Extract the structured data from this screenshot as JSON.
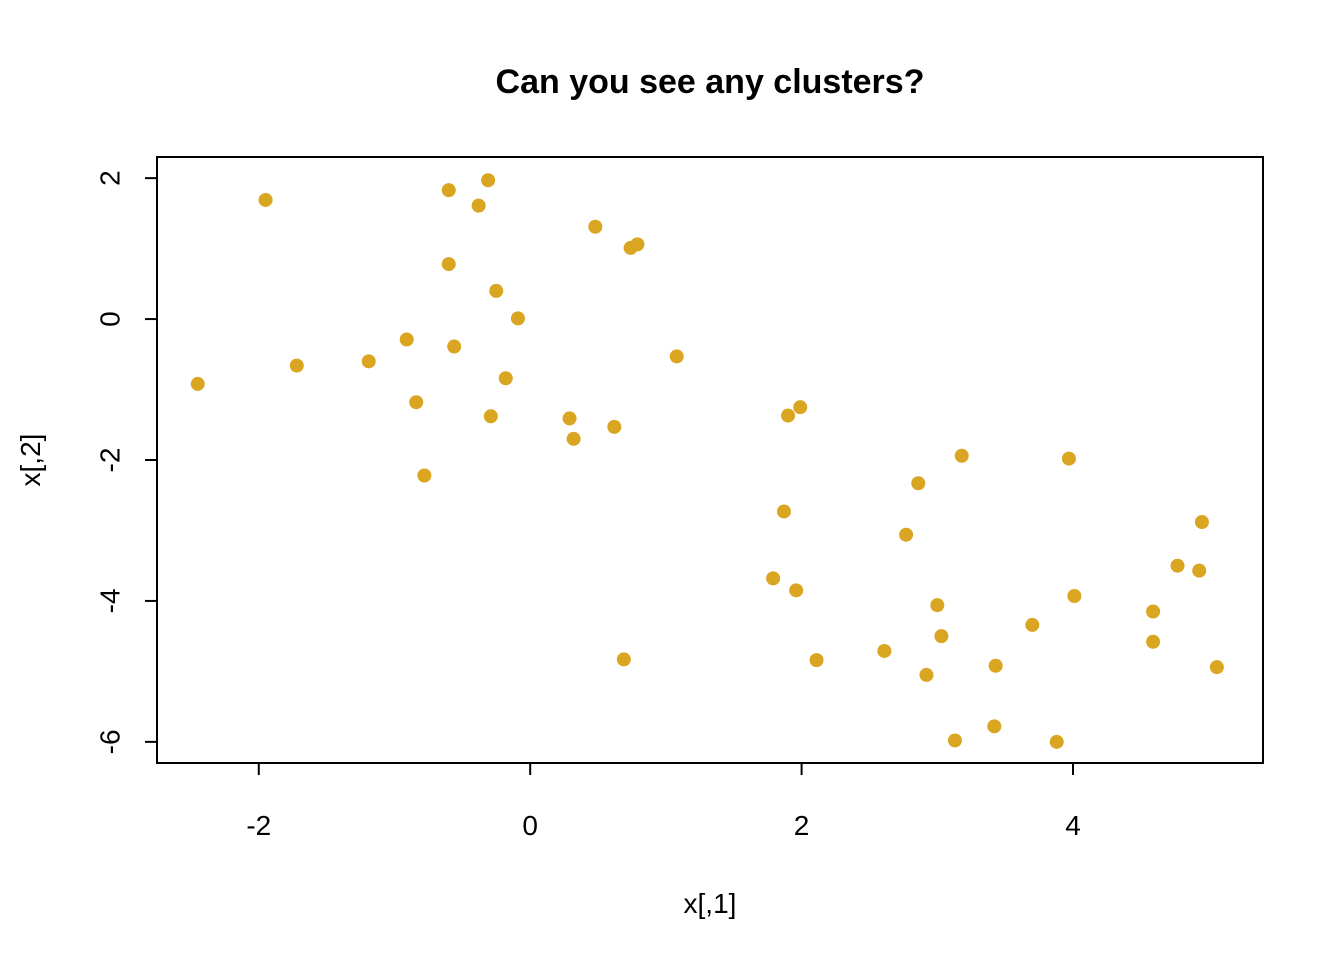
{
  "chart_data": {
    "type": "scatter",
    "title": "Can you see any clusters?",
    "xlabel": "x[,1]",
    "ylabel": "x[,2]",
    "xlim": [
      -2.75,
      5.4
    ],
    "ylim": [
      -6.3,
      2.3
    ],
    "xticks": [
      -2,
      0,
      2,
      4
    ],
    "yticks": [
      -6,
      -4,
      -2,
      0,
      2
    ],
    "grid": false,
    "legend": "none",
    "point_color": "#DAA520",
    "points": [
      {
        "x": -2.45,
        "y": -0.92
      },
      {
        "x": -1.95,
        "y": 1.69
      },
      {
        "x": -1.72,
        "y": -0.66
      },
      {
        "x": -1.19,
        "y": -0.6
      },
      {
        "x": -0.91,
        "y": -0.29
      },
      {
        "x": -0.84,
        "y": -1.18
      },
      {
        "x": -0.78,
        "y": -2.22
      },
      {
        "x": -0.6,
        "y": 1.83
      },
      {
        "x": -0.6,
        "y": 0.78
      },
      {
        "x": -0.56,
        "y": -0.39
      },
      {
        "x": -0.38,
        "y": 1.61
      },
      {
        "x": -0.31,
        "y": 1.97
      },
      {
        "x": -0.29,
        "y": -1.38
      },
      {
        "x": -0.25,
        "y": 0.4
      },
      {
        "x": -0.18,
        "y": -0.84
      },
      {
        "x": -0.09,
        "y": 0.01
      },
      {
        "x": 0.29,
        "y": -1.41
      },
      {
        "x": 0.32,
        "y": -1.7
      },
      {
        "x": 0.48,
        "y": 1.31
      },
      {
        "x": 0.62,
        "y": -1.53
      },
      {
        "x": 0.69,
        "y": -4.83
      },
      {
        "x": 0.74,
        "y": 1.01
      },
      {
        "x": 0.79,
        "y": 1.06
      },
      {
        "x": 1.08,
        "y": -0.53
      },
      {
        "x": 1.79,
        "y": -3.68
      },
      {
        "x": 1.87,
        "y": -2.73
      },
      {
        "x": 1.9,
        "y": -1.37
      },
      {
        "x": 1.96,
        "y": -3.85
      },
      {
        "x": 1.99,
        "y": -1.25
      },
      {
        "x": 2.11,
        "y": -4.84
      },
      {
        "x": 2.61,
        "y": -4.71
      },
      {
        "x": 2.77,
        "y": -3.06
      },
      {
        "x": 2.86,
        "y": -2.33
      },
      {
        "x": 2.92,
        "y": -5.05
      },
      {
        "x": 3.0,
        "y": -4.06
      },
      {
        "x": 3.03,
        "y": -4.5
      },
      {
        "x": 3.13,
        "y": -5.98
      },
      {
        "x": 3.18,
        "y": -1.94
      },
      {
        "x": 3.42,
        "y": -5.78
      },
      {
        "x": 3.43,
        "y": -4.92
      },
      {
        "x": 3.7,
        "y": -4.34
      },
      {
        "x": 3.88,
        "y": -6.0
      },
      {
        "x": 3.97,
        "y": -1.98
      },
      {
        "x": 4.01,
        "y": -3.93
      },
      {
        "x": 4.59,
        "y": -4.15
      },
      {
        "x": 4.59,
        "y": -4.58
      },
      {
        "x": 4.77,
        "y": -3.5
      },
      {
        "x": 4.93,
        "y": -3.57
      },
      {
        "x": 4.95,
        "y": -2.88
      },
      {
        "x": 5.06,
        "y": -4.94
      }
    ]
  }
}
